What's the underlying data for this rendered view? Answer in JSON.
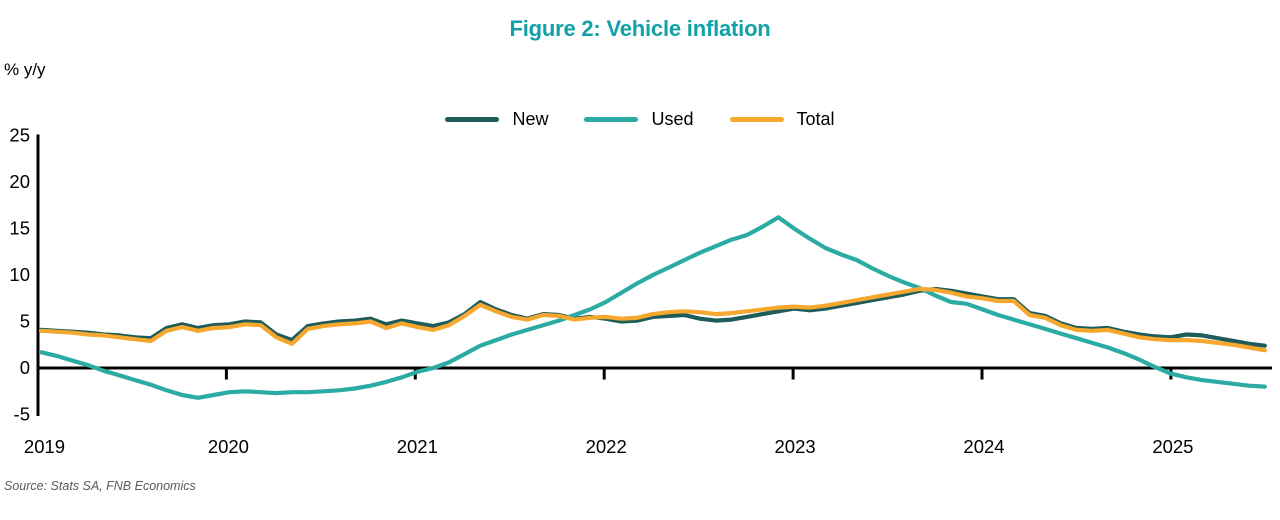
{
  "figure": {
    "title": "Figure 2: Vehicle inflation",
    "source": "Source: Stats SA, FNB Economics"
  },
  "chart_data": {
    "type": "line",
    "title": "Figure 2: Vehicle inflation",
    "xlabel": "",
    "ylabel": "% y/y",
    "ylim": [
      -5,
      25
    ],
    "y_ticks": [
      25,
      20,
      15,
      10,
      5,
      0,
      -5
    ],
    "x_tick_labels": [
      "2019",
      "2020",
      "2021",
      "2022",
      "2023",
      "2024",
      "2025"
    ],
    "grid": false,
    "legend_position": "top-center",
    "x": [
      "2019-01",
      "2019-02",
      "2019-03",
      "2019-04",
      "2019-05",
      "2019-06",
      "2019-07",
      "2019-08",
      "2019-09",
      "2019-10",
      "2019-11",
      "2019-12",
      "2020-01",
      "2020-02",
      "2020-03",
      "2020-04",
      "2020-05",
      "2020-06",
      "2020-07",
      "2020-08",
      "2020-09",
      "2020-10",
      "2020-11",
      "2020-12",
      "2021-01",
      "2021-02",
      "2021-03",
      "2021-04",
      "2021-05",
      "2021-06",
      "2021-07",
      "2021-08",
      "2021-09",
      "2021-10",
      "2021-11",
      "2021-12",
      "2022-01",
      "2022-02",
      "2022-03",
      "2022-04",
      "2022-05",
      "2022-06",
      "2022-07",
      "2022-08",
      "2022-09",
      "2022-10",
      "2022-11",
      "2022-12",
      "2023-01",
      "2023-02",
      "2023-03",
      "2023-04",
      "2023-05",
      "2023-06",
      "2023-07",
      "2023-08",
      "2023-09",
      "2023-10",
      "2023-11",
      "2023-12",
      "2024-01",
      "2024-02",
      "2024-03",
      "2024-04",
      "2024-05",
      "2024-06",
      "2024-07",
      "2024-08",
      "2024-09",
      "2024-10",
      "2024-11",
      "2024-12",
      "2025-01",
      "2025-02",
      "2025-03",
      "2025-04",
      "2025-05",
      "2025-06",
      "2025-07"
    ],
    "series": [
      {
        "name": "New",
        "color": "#1E5C5C",
        "values": [
          4.1,
          4.0,
          3.9,
          3.8,
          3.6,
          3.5,
          3.3,
          3.2,
          4.3,
          4.7,
          4.3,
          4.6,
          4.7,
          5.0,
          4.9,
          3.6,
          3.0,
          4.5,
          4.8,
          5.0,
          5.1,
          5.3,
          4.7,
          5.1,
          4.8,
          4.5,
          4.9,
          5.8,
          7.1,
          6.3,
          5.7,
          5.3,
          5.8,
          5.7,
          5.3,
          5.5,
          5.3,
          5.0,
          5.1,
          5.5,
          5.6,
          5.7,
          5.3,
          5.1,
          5.2,
          5.5,
          5.8,
          6.1,
          6.4,
          6.2,
          6.4,
          6.7,
          7.0,
          7.3,
          7.6,
          7.9,
          8.3,
          8.5,
          8.3,
          8.0,
          7.7,
          7.4,
          7.4,
          5.9,
          5.6,
          4.8,
          4.3,
          4.2,
          4.3,
          3.9,
          3.6,
          3.4,
          3.3,
          3.6,
          3.5,
          3.2,
          2.9,
          2.6,
          2.4
        ]
      },
      {
        "name": "Used",
        "color": "#2BABA3",
        "values": [
          1.7,
          1.3,
          0.8,
          0.3,
          -0.3,
          -0.8,
          -1.3,
          -1.8,
          -2.4,
          -2.9,
          -3.2,
          -2.9,
          -2.6,
          -2.5,
          -2.6,
          -2.7,
          -2.6,
          -2.6,
          -2.5,
          -2.4,
          -2.2,
          -1.9,
          -1.5,
          -1.0,
          -0.4,
          0.0,
          0.6,
          1.5,
          2.4,
          3.0,
          3.6,
          4.1,
          4.6,
          5.1,
          5.7,
          6.3,
          7.1,
          8.1,
          9.1,
          10.0,
          10.8,
          11.6,
          12.4,
          13.1,
          13.8,
          14.3,
          15.2,
          16.2,
          15.0,
          13.9,
          12.9,
          12.2,
          11.6,
          10.7,
          9.9,
          9.2,
          8.6,
          7.8,
          7.1,
          6.9,
          6.3,
          5.7,
          5.2,
          4.7,
          4.2,
          3.7,
          3.2,
          2.7,
          2.2,
          1.6,
          0.9,
          0.1,
          -0.6,
          -1.0,
          -1.3,
          -1.5,
          -1.7,
          -1.9,
          -2.0
        ]
      },
      {
        "name": "Total",
        "color": "#F6A72D",
        "values": [
          4.0,
          3.9,
          3.8,
          3.6,
          3.5,
          3.3,
          3.1,
          2.9,
          4.0,
          4.4,
          4.0,
          4.3,
          4.4,
          4.7,
          4.6,
          3.3,
          2.6,
          4.2,
          4.5,
          4.7,
          4.8,
          5.0,
          4.3,
          4.8,
          4.4,
          4.1,
          4.6,
          5.6,
          6.8,
          6.1,
          5.5,
          5.2,
          5.7,
          5.6,
          5.2,
          5.4,
          5.5,
          5.3,
          5.4,
          5.8,
          6.0,
          6.1,
          6.0,
          5.8,
          5.9,
          6.1,
          6.3,
          6.5,
          6.6,
          6.5,
          6.7,
          7.0,
          7.3,
          7.6,
          7.9,
          8.2,
          8.5,
          8.4,
          8.1,
          7.7,
          7.5,
          7.2,
          7.2,
          5.7,
          5.4,
          4.6,
          4.1,
          4.0,
          4.1,
          3.7,
          3.3,
          3.1,
          3.0,
          3.0,
          2.9,
          2.7,
          2.5,
          2.2,
          1.9
        ]
      }
    ],
    "colors": {
      "title": "#12A1A7",
      "axis": "#000000",
      "source_text": "#595959"
    }
  }
}
